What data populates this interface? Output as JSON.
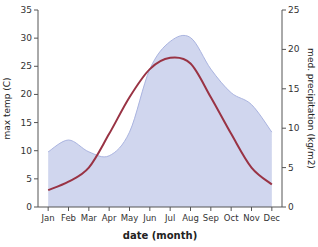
{
  "chart_data": {
    "type": "line",
    "xlabel": "date (month)",
    "ylabel": "max temp (C)",
    "y2label": "med. precipitation (kg/m2)",
    "categories": [
      "Jan",
      "Feb",
      "Mar",
      "Apr",
      "May",
      "Jun",
      "Jul",
      "Aug",
      "Sep",
      "Oct",
      "Nov",
      "Dec"
    ],
    "series": [
      {
        "type": "area",
        "axis": "y2",
        "color": "#aab4e0",
        "values": [
          7.0,
          8.5,
          7.0,
          6.5,
          9.5,
          17.5,
          21.0,
          21.5,
          17.5,
          14.5,
          13.0,
          9.5
        ]
      },
      {
        "type": "line",
        "color": "#993344",
        "values": [
          3.0,
          4.5,
          7.0,
          13.0,
          19.5,
          24.5,
          26.5,
          25.5,
          19.5,
          13.0,
          7.0,
          4.0
        ]
      }
    ],
    "ylim": [
      0,
      35
    ],
    "yticks": [
      0,
      5,
      10,
      15,
      20,
      25,
      30,
      35
    ],
    "y2lim": [
      0,
      25
    ],
    "y2ticks": [
      0,
      5,
      10,
      15,
      20,
      25
    ],
    "grid": false
  }
}
